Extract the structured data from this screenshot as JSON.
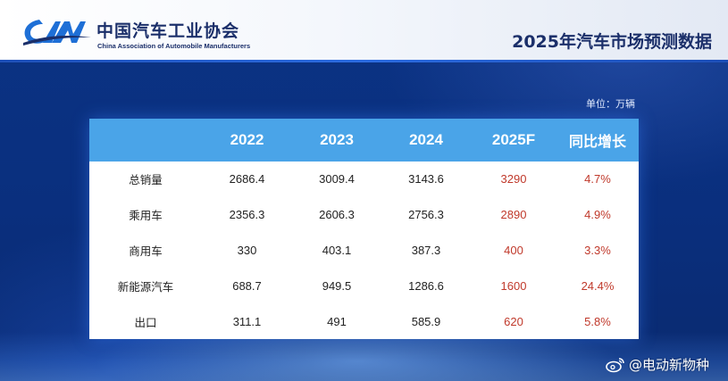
{
  "header": {
    "org_name": "中国汽车工业协会",
    "org_sub": "China Association of Automobile Manufacturers",
    "logo_text": "CAAM",
    "title": "2025年汽车市场预测数据"
  },
  "unit_label": "单位：万辆",
  "table": {
    "columns": [
      "",
      "2022",
      "2023",
      "2024",
      "2025F",
      "同比增长"
    ],
    "rows": [
      {
        "label": "总销量",
        "values": [
          "2686.4",
          "3009.4",
          "3143.6",
          "3290",
          "4.7%"
        ]
      },
      {
        "label": "乘用车",
        "values": [
          "2356.3",
          "2606.3",
          "2756.3",
          "2890",
          "4.9%"
        ]
      },
      {
        "label": "商用车",
        "values": [
          "330",
          "403.1",
          "387.3",
          "400",
          "3.3%"
        ]
      },
      {
        "label": "新能源汽车",
        "values": [
          "688.7",
          "949.5",
          "1286.6",
          "1600",
          "24.4%"
        ]
      },
      {
        "label": "出口",
        "values": [
          "311.1",
          "491",
          "585.9",
          "620",
          "5.8%"
        ]
      }
    ]
  },
  "colors": {
    "header_row": "#4aa4e8",
    "forecast_text": "#c0392b",
    "background": "#0c2f79"
  },
  "watermark": {
    "icon": "weibo-icon",
    "text": "@电动新物种"
  }
}
